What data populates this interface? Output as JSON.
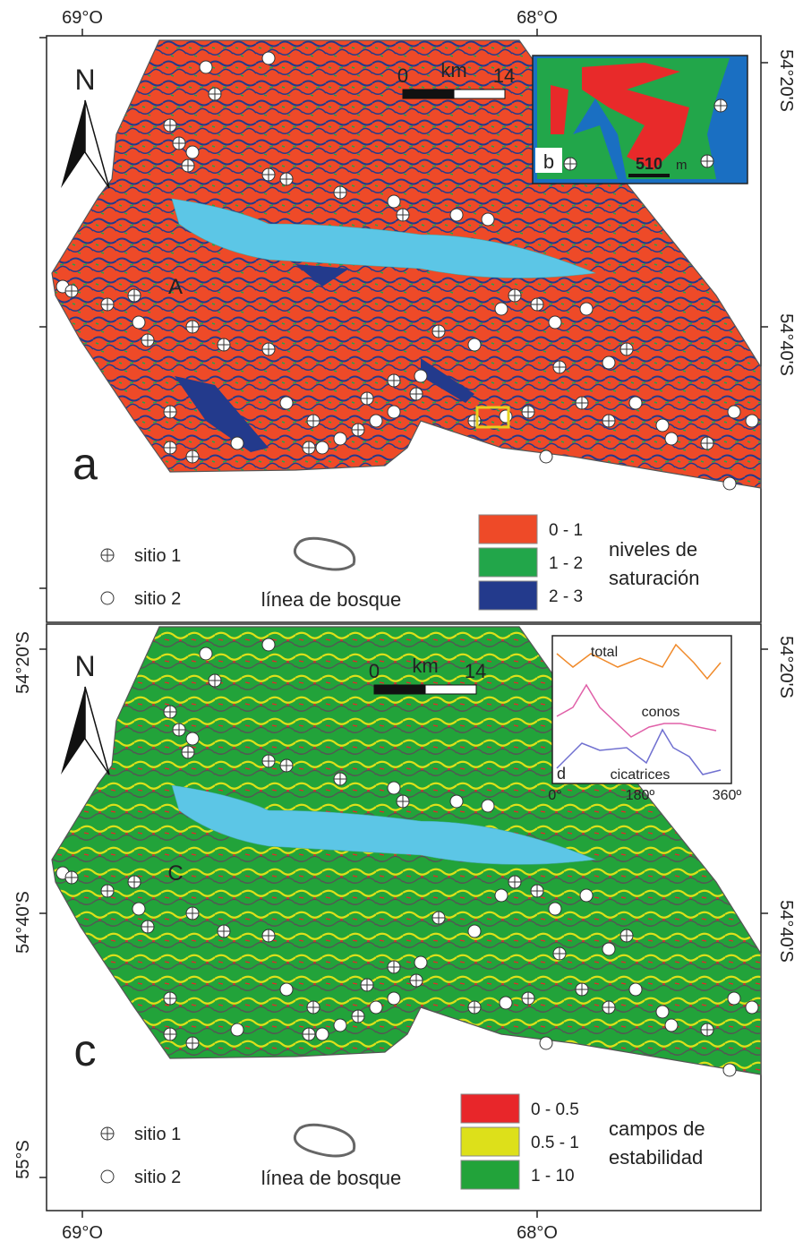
{
  "panel_a": {
    "label": "a",
    "lon_labels": [
      "69°O",
      "68°O"
    ],
    "right_lat_labels": [
      "54°20'S",
      "54°40'S"
    ],
    "north": "N",
    "place_label": "A",
    "scale": {
      "start": "0",
      "unit": "km",
      "end": "14"
    },
    "inset": {
      "label": "b",
      "scale_value": "510",
      "scale_unit": "m"
    },
    "legend": {
      "site_1": "sitio 1",
      "site_2": "sitio 2",
      "line_label": "línea de bosque",
      "classes": [
        {
          "label": "0 - 1",
          "color": "#ee4a28"
        },
        {
          "label": "1 - 2",
          "color": "#22a64a"
        },
        {
          "label": "2 - 3",
          "color": "#233a8c"
        }
      ],
      "title_lines": [
        "niveles de",
        "saturación"
      ]
    }
  },
  "panel_c": {
    "label": "c",
    "lon_labels": [
      "69°O",
      "68°O"
    ],
    "left_lat_labels": [
      "54°20'S",
      "54°40'S",
      "55°S"
    ],
    "right_lat_labels": [
      "54°20'S",
      "54°40'S"
    ],
    "north": "N",
    "place_label": "C",
    "scale": {
      "start": "0",
      "unit": "km",
      "end": "14"
    },
    "inset": {
      "label": "d",
      "series": [
        "total",
        "conos",
        "cicatrices"
      ],
      "x_labels": [
        "0°",
        "180º",
        "360º"
      ]
    },
    "legend": {
      "site_1": "sitio 1",
      "site_2": "sitio 2",
      "line_label": "línea de bosque",
      "classes": [
        {
          "label": "0 - 0.5",
          "color": "#e8262a"
        },
        {
          "label": "0.5 - 1",
          "color": "#dde01a"
        },
        {
          "label": "1 - 10",
          "color": "#22a33a"
        }
      ],
      "title_lines": [
        "campos de",
        "estabilidad"
      ]
    }
  }
}
